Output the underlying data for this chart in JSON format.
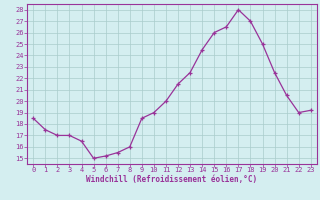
{
  "x": [
    0,
    1,
    2,
    3,
    4,
    5,
    6,
    7,
    8,
    9,
    10,
    11,
    12,
    13,
    14,
    15,
    16,
    17,
    18,
    19,
    20,
    21,
    22,
    23
  ],
  "y": [
    18.5,
    17.5,
    17.0,
    17.0,
    16.5,
    15.0,
    15.2,
    15.5,
    16.0,
    18.5,
    19.0,
    20.0,
    21.5,
    22.5,
    24.5,
    26.0,
    26.5,
    28.0,
    27.0,
    25.0,
    22.5,
    20.5,
    19.0,
    19.2
  ],
  "line_color": "#993399",
  "marker": "+",
  "bg_color": "#d4eef0",
  "grid_color": "#aacccc",
  "xlabel": "Windchill (Refroidissement éolien,°C)",
  "xlabel_color": "#993399",
  "tick_color": "#993399",
  "ylabel_ticks": [
    15,
    16,
    17,
    18,
    19,
    20,
    21,
    22,
    23,
    24,
    25,
    26,
    27,
    28
  ],
  "ylim": [
    14.5,
    28.5
  ],
  "xlim": [
    -0.5,
    23.5
  ],
  "spine_color": "#993399"
}
